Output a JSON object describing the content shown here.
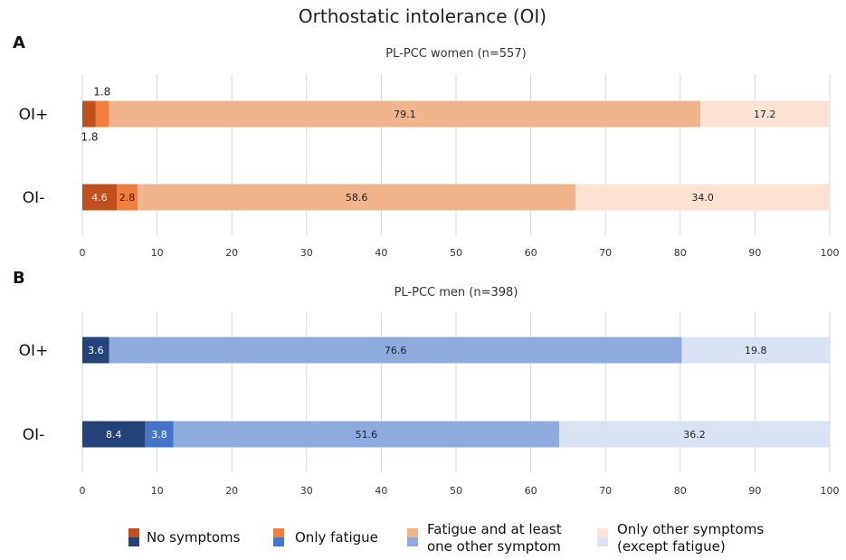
{
  "figure_title": "Orthostatic intolerance (OI)",
  "chart_data": [
    {
      "type": "bar",
      "orientation": "horizontal",
      "stacked": true,
      "panel_label": "A",
      "title": "PL-PCC women (n=557)",
      "categories": [
        "OI+",
        "OI-"
      ],
      "xlim": [
        0,
        100
      ],
      "xticks": [
        0,
        10,
        20,
        30,
        40,
        50,
        60,
        70,
        80,
        90,
        100
      ],
      "grid": true,
      "series": [
        {
          "name": "No symptoms",
          "values": [
            1.8,
            4.6
          ],
          "color": "#c0501d"
        },
        {
          "name": "Only fatigue",
          "values": [
            1.8,
            2.8
          ],
          "color": "#ef7e3f"
        },
        {
          "name": "Fatigue and at least one other symptom",
          "values": [
            79.1,
            58.6
          ],
          "color": "#f2b48a"
        },
        {
          "name": "Only other symptoms (except fatigue)",
          "values": [
            17.2,
            34.0
          ],
          "color": "#fce2d3"
        }
      ],
      "value_labels": [
        [
          "1.8",
          "1.8",
          "79.1",
          "17.2"
        ],
        [
          "4.6",
          "2.8",
          "58.6",
          "34.0"
        ]
      ]
    },
    {
      "type": "bar",
      "orientation": "horizontal",
      "stacked": true,
      "panel_label": "B",
      "title": "PL-PCC men (n=398)",
      "categories": [
        "OI+",
        "OI-"
      ],
      "xlim": [
        0,
        100
      ],
      "xticks": [
        0,
        10,
        20,
        30,
        40,
        50,
        60,
        70,
        80,
        90,
        100
      ],
      "grid": true,
      "series": [
        {
          "name": "No symptoms",
          "values": [
            3.6,
            8.4
          ],
          "color": "#24437b"
        },
        {
          "name": "Only fatigue",
          "values": [
            0.0,
            3.8
          ],
          "color": "#4575c8"
        },
        {
          "name": "Fatigue and at least one other symptom",
          "values": [
            76.6,
            51.6
          ],
          "color": "#8eaade"
        },
        {
          "name": "Only other symptoms (except fatigue)",
          "values": [
            19.8,
            36.2
          ],
          "color": "#d9e2f3"
        }
      ],
      "value_labels": [
        [
          "3.6",
          "",
          "76.6",
          "19.8"
        ],
        [
          "8.4",
          "3.8",
          "51.6",
          "36.2"
        ]
      ]
    }
  ],
  "legend": {
    "placement": "bottom",
    "items": [
      {
        "lines": [
          "No symptoms"
        ],
        "color_top": "#c0501d",
        "color_bottom": "#24437b"
      },
      {
        "lines": [
          "Only fatigue"
        ],
        "color_top": "#ef7e3f",
        "color_bottom": "#4575c8"
      },
      {
        "lines": [
          "Fatigue and at least",
          "one other symptom"
        ],
        "color_top": "#f2b48a",
        "color_bottom": "#8eaade"
      },
      {
        "lines": [
          "Only other symptoms",
          "(except fatigue)"
        ],
        "color_top": "#fce2d3",
        "color_bottom": "#d9e2f3"
      }
    ]
  }
}
